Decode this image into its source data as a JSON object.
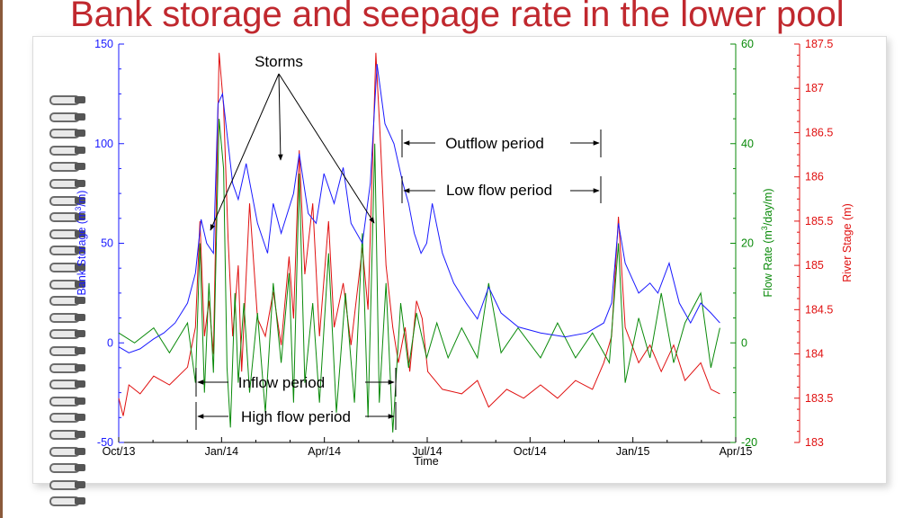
{
  "title": "Bank storage and seepage rate in the lower pool",
  "chart_data": {
    "type": "line",
    "xlabel": "Time",
    "x_ticks": [
      "Oct/13",
      "Jan/14",
      "Apr/14",
      "Jul/14",
      "Oct/14",
      "Jan/15",
      "Apr/15"
    ],
    "x_range": [
      "2013-10-01",
      "2015-04-01"
    ],
    "axes": {
      "bank_storage": {
        "label_pre": "Bank Storage (m",
        "label_sup": "3",
        "label_post": "/m)",
        "range": [
          -50,
          150
        ],
        "ticks": [
          "-50",
          "0",
          "50",
          "100",
          "150"
        ],
        "color": "#1a1aff"
      },
      "flow_rate": {
        "label_pre": "Flow Rate (m",
        "label_sup": "3",
        "label_post": "/day/m)",
        "range": [
          -20,
          60
        ],
        "ticks": [
          "-20",
          "0",
          "20",
          "40",
          "60"
        ],
        "color": "#0a8a0a"
      },
      "river_stage": {
        "label": "River Stage (m)",
        "range": [
          183,
          187.5
        ],
        "ticks": [
          "183",
          "183.5",
          "184",
          "184.5",
          "185",
          "185.5",
          "186",
          "186.5",
          "187",
          "187.5"
        ],
        "color": "#e01010"
      }
    },
    "series": [
      {
        "key": "bank_storage",
        "axis": "bank_storage",
        "color": "#1a1aff",
        "points": [
          [
            "2013-10-01",
            -2
          ],
          [
            "2013-10-10",
            -5
          ],
          [
            "2013-10-20",
            -3
          ],
          [
            "2013-11-01",
            2
          ],
          [
            "2013-11-10",
            5
          ],
          [
            "2013-11-20",
            10
          ],
          [
            "2013-12-01",
            20
          ],
          [
            "2013-12-08",
            35
          ],
          [
            "2013-12-13",
            62
          ],
          [
            "2013-12-18",
            50
          ],
          [
            "2013-12-24",
            45
          ],
          [
            "2013-12-28",
            120
          ],
          [
            "2014-01-01",
            125
          ],
          [
            "2014-01-05",
            105
          ],
          [
            "2014-01-10",
            80
          ],
          [
            "2014-01-15",
            72
          ],
          [
            "2014-01-22",
            90
          ],
          [
            "2014-02-01",
            60
          ],
          [
            "2014-02-10",
            45
          ],
          [
            "2014-02-15",
            70
          ],
          [
            "2014-02-22",
            55
          ],
          [
            "2014-03-05",
            75
          ],
          [
            "2014-03-10",
            95
          ],
          [
            "2014-03-18",
            65
          ],
          [
            "2014-03-25",
            60
          ],
          [
            "2014-04-01",
            85
          ],
          [
            "2014-04-10",
            70
          ],
          [
            "2014-04-18",
            88
          ],
          [
            "2014-04-25",
            60
          ],
          [
            "2014-05-05",
            50
          ],
          [
            "2014-05-12",
            80
          ],
          [
            "2014-05-18",
            140
          ],
          [
            "2014-05-25",
            110
          ],
          [
            "2014-06-02",
            100
          ],
          [
            "2014-06-10",
            80
          ],
          [
            "2014-06-15",
            70
          ],
          [
            "2014-06-20",
            55
          ],
          [
            "2014-06-26",
            45
          ],
          [
            "2014-07-01",
            50
          ],
          [
            "2014-07-06",
            70
          ],
          [
            "2014-07-15",
            45
          ],
          [
            "2014-07-25",
            30
          ],
          [
            "2014-08-05",
            20
          ],
          [
            "2014-08-15",
            12
          ],
          [
            "2014-08-25",
            28
          ],
          [
            "2014-09-05",
            15
          ],
          [
            "2014-09-20",
            8
          ],
          [
            "2014-10-10",
            5
          ],
          [
            "2014-11-01",
            3
          ],
          [
            "2014-11-20",
            5
          ],
          [
            "2014-12-05",
            10
          ],
          [
            "2014-12-12",
            20
          ],
          [
            "2014-12-18",
            60
          ],
          [
            "2014-12-24",
            40
          ],
          [
            "2015-01-05",
            25
          ],
          [
            "2015-01-15",
            30
          ],
          [
            "2015-01-22",
            25
          ],
          [
            "2015-02-01",
            40
          ],
          [
            "2015-02-10",
            20
          ],
          [
            "2015-02-20",
            10
          ],
          [
            "2015-03-01",
            20
          ],
          [
            "2015-03-10",
            15
          ],
          [
            "2015-03-18",
            10
          ]
        ]
      },
      {
        "key": "flow_rate",
        "axis": "flow_rate",
        "color": "#0a8a0a",
        "points": [
          [
            "2013-10-01",
            2
          ],
          [
            "2013-10-15",
            0
          ],
          [
            "2013-11-01",
            3
          ],
          [
            "2013-11-15",
            -2
          ],
          [
            "2013-12-01",
            4
          ],
          [
            "2013-12-08",
            -8
          ],
          [
            "2013-12-12",
            20
          ],
          [
            "2013-12-16",
            -10
          ],
          [
            "2013-12-20",
            12
          ],
          [
            "2013-12-24",
            -6
          ],
          [
            "2013-12-29",
            45
          ],
          [
            "2014-01-02",
            35
          ],
          [
            "2014-01-05",
            -5
          ],
          [
            "2014-01-08",
            -17
          ],
          [
            "2014-01-12",
            10
          ],
          [
            "2014-01-15",
            -8
          ],
          [
            "2014-01-20",
            8
          ],
          [
            "2014-01-25",
            -10
          ],
          [
            "2014-02-01",
            6
          ],
          [
            "2014-02-08",
            -14
          ],
          [
            "2014-02-15",
            12
          ],
          [
            "2014-02-22",
            -4
          ],
          [
            "2014-03-01",
            14
          ],
          [
            "2014-03-05",
            -12
          ],
          [
            "2014-03-10",
            34
          ],
          [
            "2014-03-15",
            -8
          ],
          [
            "2014-03-22",
            8
          ],
          [
            "2014-03-28",
            -12
          ],
          [
            "2014-04-05",
            18
          ],
          [
            "2014-04-12",
            -14
          ],
          [
            "2014-04-20",
            10
          ],
          [
            "2014-04-28",
            -12
          ],
          [
            "2014-05-05",
            22
          ],
          [
            "2014-05-10",
            -15
          ],
          [
            "2014-05-16",
            40
          ],
          [
            "2014-05-20",
            -12
          ],
          [
            "2014-05-26",
            12
          ],
          [
            "2014-06-01",
            -18
          ],
          [
            "2014-06-08",
            8
          ],
          [
            "2014-06-15",
            -5
          ],
          [
            "2014-06-22",
            6
          ],
          [
            "2014-07-01",
            -3
          ],
          [
            "2014-07-10",
            4
          ],
          [
            "2014-07-20",
            -3
          ],
          [
            "2014-08-01",
            3
          ],
          [
            "2014-08-15",
            -3
          ],
          [
            "2014-08-25",
            12
          ],
          [
            "2014-09-05",
            -2
          ],
          [
            "2014-09-20",
            3
          ],
          [
            "2014-10-10",
            -3
          ],
          [
            "2014-10-25",
            4
          ],
          [
            "2014-11-10",
            -3
          ],
          [
            "2014-11-25",
            2
          ],
          [
            "2014-12-10",
            -4
          ],
          [
            "2014-12-18",
            20
          ],
          [
            "2014-12-24",
            -8
          ],
          [
            "2015-01-05",
            5
          ],
          [
            "2015-01-15",
            -3
          ],
          [
            "2015-01-25",
            10
          ],
          [
            "2015-02-05",
            -4
          ],
          [
            "2015-02-15",
            4
          ],
          [
            "2015-03-01",
            10
          ],
          [
            "2015-03-10",
            -5
          ],
          [
            "2015-03-18",
            3
          ]
        ]
      },
      {
        "key": "river_stage",
        "axis": "river_stage",
        "color": "#e01010",
        "points": [
          [
            "2013-10-01",
            183.5
          ],
          [
            "2013-10-05",
            183.3
          ],
          [
            "2013-10-10",
            183.65
          ],
          [
            "2013-10-20",
            183.55
          ],
          [
            "2013-11-01",
            183.75
          ],
          [
            "2013-11-15",
            183.65
          ],
          [
            "2013-12-01",
            183.85
          ],
          [
            "2013-12-08",
            184.3
          ],
          [
            "2013-12-12",
            185.5
          ],
          [
            "2013-12-16",
            184.2
          ],
          [
            "2013-12-20",
            184.6
          ],
          [
            "2013-12-24",
            184
          ],
          [
            "2013-12-29",
            187.4
          ],
          [
            "2014-01-02",
            186.8
          ],
          [
            "2014-01-06",
            185.3
          ],
          [
            "2014-01-10",
            184.2
          ],
          [
            "2014-01-15",
            185
          ],
          [
            "2014-01-18",
            183.8
          ],
          [
            "2014-01-25",
            185.7
          ],
          [
            "2014-02-01",
            184.4
          ],
          [
            "2014-02-08",
            184.2
          ],
          [
            "2014-02-15",
            184.7
          ],
          [
            "2014-02-22",
            184.1
          ],
          [
            "2014-03-01",
            185.1
          ],
          [
            "2014-03-05",
            184.4
          ],
          [
            "2014-03-10",
            186.3
          ],
          [
            "2014-03-15",
            184.9
          ],
          [
            "2014-03-22",
            185.7
          ],
          [
            "2014-03-28",
            184.2
          ],
          [
            "2014-04-05",
            185.5
          ],
          [
            "2014-04-10",
            184.3
          ],
          [
            "2014-04-18",
            184.8
          ],
          [
            "2014-04-25",
            184.1
          ],
          [
            "2014-05-05",
            185.2
          ],
          [
            "2014-05-10",
            184.5
          ],
          [
            "2014-05-17",
            187.4
          ],
          [
            "2014-05-21",
            186.4
          ],
          [
            "2014-05-26",
            185
          ],
          [
            "2014-06-01",
            184.3
          ],
          [
            "2014-06-06",
            183.9
          ],
          [
            "2014-06-12",
            184.3
          ],
          [
            "2014-06-16",
            183.8
          ],
          [
            "2014-06-22",
            184.6
          ],
          [
            "2014-06-27",
            184.4
          ],
          [
            "2014-07-02",
            183.8
          ],
          [
            "2014-07-15",
            183.6
          ],
          [
            "2014-08-01",
            183.55
          ],
          [
            "2014-08-15",
            183.7
          ],
          [
            "2014-08-25",
            183.4
          ],
          [
            "2014-09-10",
            183.6
          ],
          [
            "2014-09-25",
            183.5
          ],
          [
            "2014-10-10",
            183.65
          ],
          [
            "2014-10-25",
            183.5
          ],
          [
            "2014-11-10",
            183.7
          ],
          [
            "2014-11-25",
            183.6
          ],
          [
            "2014-12-05",
            183.9
          ],
          [
            "2014-12-12",
            184.2
          ],
          [
            "2014-12-18",
            185.55
          ],
          [
            "2014-12-24",
            184.3
          ],
          [
            "2015-01-05",
            183.9
          ],
          [
            "2015-01-15",
            184.1
          ],
          [
            "2015-01-25",
            183.8
          ],
          [
            "2015-02-05",
            184.1
          ],
          [
            "2015-02-15",
            183.7
          ],
          [
            "2015-03-01",
            183.9
          ],
          [
            "2015-03-10",
            183.6
          ],
          [
            "2015-03-18",
            183.55
          ]
        ]
      }
    ],
    "annotations": {
      "storms": "Storms",
      "outflow_period": "Outflow period",
      "low_flow_period": "Low flow period",
      "inflow_period": "Inflow period",
      "high_flow_period": "High flow period"
    }
  }
}
